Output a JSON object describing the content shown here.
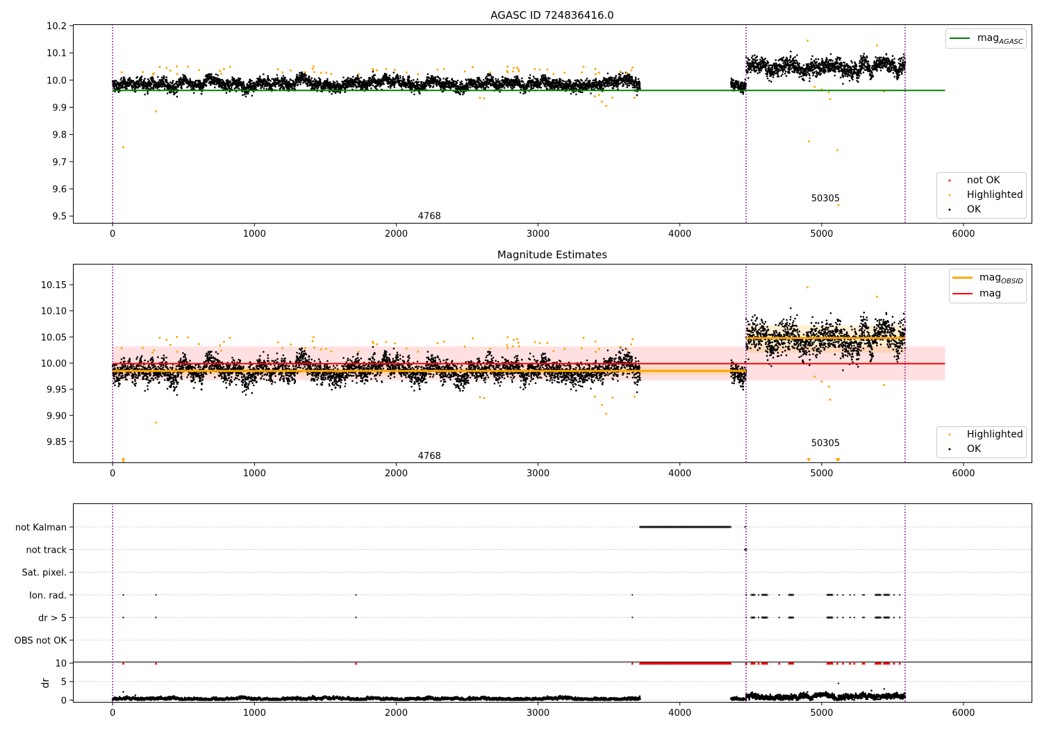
{
  "chart_data": [
    {
      "type": "scatter",
      "title": "AGASC ID 724836416.0",
      "xlabel": "",
      "ylabel": "",
      "xlim": [
        -280,
        6480
      ],
      "ylim": [
        9.475,
        10.205
      ],
      "xticks": [
        "0",
        "1000",
        "2000",
        "3000",
        "4000",
        "5000",
        "6000"
      ],
      "yticks": [
        "9.5",
        "9.6",
        "9.7",
        "9.8",
        "9.9",
        "10.0",
        "10.1",
        "10.2"
      ],
      "obsid_boundaries": [
        0,
        4467,
        5588
      ],
      "obsid_labels": [
        {
          "text": "4768",
          "x": 2234,
          "y": 9.502
        },
        {
          "text": "50305",
          "x": 5027,
          "y": 9.567
        }
      ],
      "mag_agasc": {
        "value": 9.962,
        "x_range": [
          0,
          5870
        ]
      },
      "segments": [
        {
          "x_start": 0,
          "x_end": 3720,
          "mean": 9.985,
          "spread": 0.014
        },
        {
          "x_start": 4360,
          "x_end": 4467,
          "mean": 9.984,
          "spread": 0.014
        },
        {
          "x_start": 4467,
          "x_end": 5590,
          "mean": 10.048,
          "spread": 0.02
        }
      ],
      "highlighted_points": [
        [
          75,
          9.753
        ],
        [
          305,
          9.885
        ],
        [
          2590,
          9.935
        ],
        [
          2620,
          9.933
        ],
        [
          3400,
          9.94
        ],
        [
          3430,
          9.945
        ],
        [
          3450,
          9.92
        ],
        [
          3480,
          9.905
        ],
        [
          3525,
          9.935
        ],
        [
          3680,
          9.935
        ],
        [
          4910,
          9.775
        ],
        [
          4950,
          9.975
        ],
        [
          5000,
          9.965
        ],
        [
          5050,
          9.955
        ],
        [
          5060,
          9.93
        ],
        [
          5110,
          9.742
        ],
        [
          5118,
          9.54
        ],
        [
          5440,
          9.958
        ],
        [
          4900,
          10.145
        ],
        [
          5390,
          10.127
        ]
      ],
      "legend": {
        "lines": [
          "mag$_{AGASC}$"
        ],
        "points": [
          "not OK",
          "Highlighted",
          "OK"
        ],
        "colors": {
          "not_ok": "#ff0000",
          "highlighted": "#ffa500",
          "ok": "#000000",
          "mag_agasc": "#008000"
        }
      }
    },
    {
      "type": "scatter",
      "title": "Magnitude Estimates",
      "xlabel": "",
      "ylabel": "",
      "xlim": [
        -280,
        6480
      ],
      "ylim": [
        9.81,
        10.19
      ],
      "xticks": [
        "0",
        "1000",
        "2000",
        "3000",
        "4000",
        "5000",
        "6000"
      ],
      "yticks": [
        "9.85",
        "9.90",
        "9.95",
        "10.00",
        "10.05",
        "10.10",
        "10.15"
      ],
      "obsid_labels": [
        {
          "text": "4768",
          "x": 2234,
          "y": 9.823
        },
        {
          "text": "50305",
          "x": 5027,
          "y": 9.848
        }
      ],
      "mag": {
        "value": 9.999,
        "band": [
          9.967,
          10.032
        ],
        "x_range": [
          0,
          5870
        ]
      },
      "mag_obsid": [
        {
          "x_start": 0,
          "x_end": 4467,
          "value": 9.985,
          "band": [
            9.977,
            9.993
          ]
        },
        {
          "x_start": 4467,
          "x_end": 5588,
          "value": 10.048,
          "band": [
            10.02,
            10.072
          ]
        }
      ],
      "clipped_points_x": [
        75,
        4910,
        5110,
        5118
      ],
      "highlighted_points": [
        [
          75,
          9.812
        ],
        [
          305,
          9.886
        ],
        [
          2590,
          9.935
        ],
        [
          2620,
          9.933
        ],
        [
          3400,
          9.936
        ],
        [
          3450,
          9.92
        ],
        [
          3480,
          9.903
        ],
        [
          3525,
          9.934
        ],
        [
          3680,
          9.936
        ],
        [
          4950,
          9.974
        ],
        [
          5000,
          9.965
        ],
        [
          5050,
          9.955
        ],
        [
          5060,
          9.93
        ],
        [
          5440,
          9.958
        ],
        [
          4900,
          10.145
        ],
        [
          5390,
          10.127
        ]
      ],
      "legend": {
        "lines": [
          "mag$_{OBSID}$",
          "mag"
        ],
        "points": [
          "Highlighted",
          "OK"
        ],
        "colors": {
          "mag_obsid": "#ffa500",
          "mag": "#ff0000",
          "highlighted": "#ffa500",
          "ok": "#000000"
        }
      }
    },
    {
      "type": "scatter",
      "title": "",
      "xlabel": "",
      "ylabel": "",
      "xlim": [
        -280,
        6480
      ],
      "flag_rows": [
        "not Kalman",
        "not track",
        "Sat. pixel.",
        "Ion. rad.",
        "dr > 5",
        "OBS not OK"
      ],
      "flag_events": {
        "not Kalman": {
          "ranges": [
            [
              3720,
              4360
            ]
          ],
          "points": [
            4460
          ]
        },
        "not track": {
          "ranges": [
            [
              4460,
              4470
            ]
          ],
          "points": []
        },
        "Sat. pixel.": {
          "ranges": [],
          "points": []
        },
        "Ion. rad.": {
          "ranges": [
            [
              4505,
              4530
            ],
            [
              4580,
              4620
            ],
            [
              4770,
              4800
            ],
            [
              5040,
              5080
            ],
            [
              5380,
              5420
            ],
            [
              5440,
              5480
            ]
          ],
          "points": [
            75,
            305,
            1715,
            3665,
            4467,
            4555,
            4700,
            5110,
            5150,
            5200,
            5230,
            5290,
            5300,
            5510,
            5550
          ]
        },
        "dr > 5": {
          "ranges": [
            [
              4505,
              4530
            ],
            [
              4580,
              4620
            ],
            [
              4770,
              4800
            ],
            [
              5040,
              5080
            ],
            [
              5380,
              5420
            ],
            [
              5440,
              5480
            ]
          ],
          "points": [
            75,
            305,
            1715,
            3665,
            4467,
            4555,
            4700,
            5110,
            5150,
            5200,
            5230,
            5290,
            5300,
            5510,
            5550
          ]
        },
        "OBS not OK": {
          "ranges": [],
          "points": []
        }
      },
      "colors": {
        "flag": "#000000",
        "dr_clipped": "#ff0000",
        "grid": "#b0b0b0"
      }
    },
    {
      "type": "scatter",
      "title": "",
      "xlabel": "",
      "ylabel": "dr",
      "xlim": [
        -280,
        6480
      ],
      "ylim": [
        -0.5,
        10.4
      ],
      "xticks": [
        "0",
        "1000",
        "2000",
        "3000",
        "4000",
        "5000",
        "6000"
      ],
      "yticks": [
        "0",
        "5",
        "10"
      ],
      "dr_clipped_ranges": [
        [
          3720,
          4360
        ],
        [
          4505,
          4530
        ],
        [
          4580,
          4620
        ],
        [
          4770,
          4800
        ],
        [
          5040,
          5080
        ],
        [
          5380,
          5420
        ],
        [
          5440,
          5480
        ]
      ],
      "dr_clipped_points": [
        75,
        305,
        1715,
        3665,
        4467,
        4555,
        4700,
        5110,
        5150,
        5200,
        5230,
        5290,
        5300,
        5510,
        5550
      ],
      "dr_outliers": [
        [
          75,
          2.2
        ],
        [
          5118,
          4.5
        ],
        [
          5440,
          3.0
        ],
        [
          4900,
          2.2
        ]
      ],
      "segments": [
        {
          "x_start": 0,
          "x_end": 3720,
          "mean": 0.35,
          "spread": 0.25
        },
        {
          "x_start": 4360,
          "x_end": 4467,
          "mean": 0.35,
          "spread": 0.25
        },
        {
          "x_start": 4467,
          "x_end": 5590,
          "mean": 0.9,
          "spread": 0.45
        }
      ]
    }
  ]
}
